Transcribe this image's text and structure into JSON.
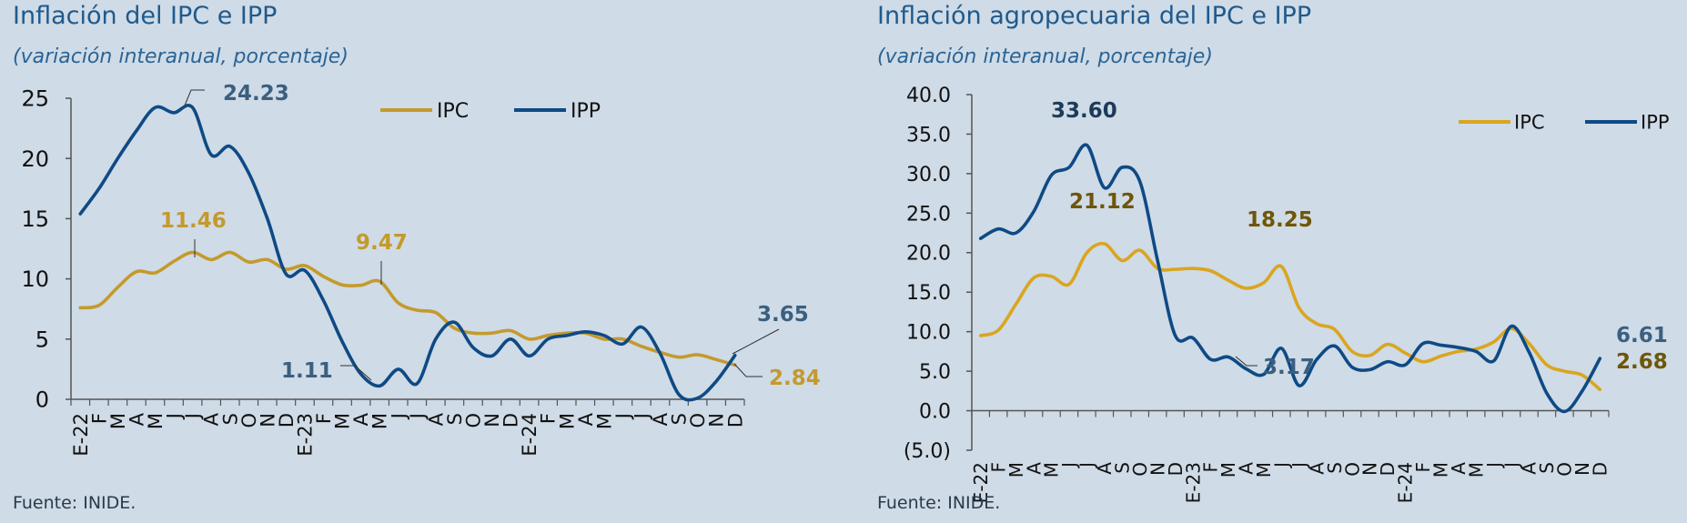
{
  "charts": [
    {
      "title": "Inflación del IPC e IPP",
      "subtitle": "(variación interanual, porcentaje)",
      "source": "Fuente: INIDE.",
      "chart_data": {
        "type": "line",
        "categories": [
          "E-22",
          "F",
          "M",
          "A",
          "M",
          "J",
          "J",
          "A",
          "S",
          "O",
          "N",
          "D",
          "E-23",
          "F",
          "M",
          "A",
          "M",
          "J",
          "J",
          "A",
          "S",
          "O",
          "N",
          "D",
          "E-24",
          "F",
          "M",
          "A",
          "M",
          "J",
          "J",
          "A",
          "S",
          "O",
          "N",
          "D"
        ],
        "y_ticks": [
          "25",
          "20",
          "15",
          "10",
          "5",
          "0"
        ],
        "ylim": [
          0,
          25
        ],
        "legend_position": "top",
        "series": [
          {
            "name": "IPC",
            "color": "#c49a2c",
            "values": [
              7.6,
              7.8,
              9.3,
              10.6,
              10.5,
              11.46,
              12.2,
              11.6,
              12.2,
              11.4,
              11.6,
              10.8,
              11.1,
              10.2,
              9.5,
              9.47,
              9.8,
              8.0,
              7.4,
              7.2,
              5.9,
              5.5,
              5.5,
              5.7,
              5.0,
              5.3,
              5.5,
              5.5,
              5.0,
              5.0,
              4.4,
              3.9,
              3.5,
              3.7,
              3.3,
              2.84
            ]
          },
          {
            "name": "IPP",
            "color": "#0e4a85",
            "values": [
              15.4,
              17.5,
              20.0,
              22.3,
              24.23,
              23.8,
              24.23,
              20.3,
              21.0,
              18.8,
              15.0,
              10.4,
              10.7,
              8.2,
              4.8,
              2.1,
              1.11,
              2.5,
              1.3,
              5.0,
              6.4,
              4.3,
              3.6,
              5.0,
              3.6,
              5.0,
              5.3,
              5.6,
              5.3,
              4.6,
              6.0,
              3.8,
              0.4,
              0.1,
              1.5,
              3.65
            ]
          }
        ],
        "annotations": [
          {
            "text": "24.23",
            "series": "IPP",
            "index": 6,
            "color": "#3a5f80"
          },
          {
            "text": "11.46",
            "series": "IPC",
            "index": 5,
            "color": "#c49a2c"
          },
          {
            "text": "9.47",
            "series": "IPC",
            "index": 15,
            "color": "#c49a2c"
          },
          {
            "text": "1.11",
            "series": "IPP",
            "index": 16,
            "color": "#3a5f80"
          },
          {
            "text": "3.65",
            "series": "IPP",
            "index": 35,
            "color": "#3a5f80"
          },
          {
            "text": "2.84",
            "series": "IPC",
            "index": 35,
            "color": "#c49a2c"
          }
        ]
      }
    },
    {
      "title": "Inflación agropecuaria del IPC e IPP",
      "subtitle": "(variación interanual, porcentaje)",
      "source": "Fuente: INIDE.",
      "chart_data": {
        "type": "line",
        "categories": [
          "E-22",
          "F",
          "M",
          "A",
          "M",
          "J",
          "J",
          "A",
          "S",
          "O",
          "N",
          "D",
          "E-23",
          "F",
          "M",
          "A",
          "M",
          "J",
          "J",
          "A",
          "S",
          "O",
          "N",
          "D",
          "E-24",
          "F",
          "M",
          "A",
          "M",
          "J",
          "J",
          "A",
          "S",
          "O",
          "N",
          "D"
        ],
        "y_ticks": [
          "40.0",
          "35.0",
          "30.0",
          "25.0",
          "20.0",
          "15.0",
          "10.0",
          "5.0",
          "0.0",
          "(5.0)"
        ],
        "ylim": [
          -5,
          40
        ],
        "legend_position": "top-right",
        "series": [
          {
            "name": "IPC",
            "color": "#daa520",
            "values": [
              9.5,
              10.2,
              13.5,
              16.8,
              17.0,
              16.0,
              20.0,
              21.12,
              19.0,
              20.3,
              18.0,
              17.9,
              18.0,
              17.7,
              16.5,
              15.5,
              16.2,
              18.25,
              13.0,
              11.0,
              10.3,
              7.5,
              7.0,
              8.4,
              7.3,
              6.2,
              6.9,
              7.5,
              7.8,
              8.7,
              10.4,
              8.5,
              5.8,
              5.0,
              4.5,
              2.68
            ]
          },
          {
            "name": "IPP",
            "color": "#0e4a85",
            "values": [
              21.8,
              23.0,
              22.5,
              25.2,
              29.8,
              30.8,
              33.6,
              28.2,
              30.8,
              29.0,
              19.0,
              9.5,
              9.2,
              6.5,
              6.8,
              5.3,
              4.6,
              7.9,
              3.17,
              6.5,
              8.2,
              5.5,
              5.2,
              6.2,
              5.8,
              8.5,
              8.3,
              8.0,
              7.5,
              6.3,
              10.7,
              7.4,
              2.2,
              -0.1,
              2.5,
              6.61
            ]
          }
        ],
        "annotations": [
          {
            "text": "33.60",
            "series": "IPP",
            "index": 6,
            "color": "#1e3a5a"
          },
          {
            "text": "21.12",
            "series": "IPC",
            "index": 7,
            "color": "#6e5608"
          },
          {
            "text": "18.25",
            "series": "IPC",
            "index": 17,
            "color": "#6e5608"
          },
          {
            "text": "3.17",
            "series": "IPP",
            "index": 18,
            "color": "#3a5f80"
          },
          {
            "text": "6.61",
            "series": "IPP",
            "index": 35,
            "color": "#3a5f80"
          },
          {
            "text": "2.68",
            "series": "IPC",
            "index": 35,
            "color": "#6e5608"
          }
        ]
      }
    }
  ]
}
